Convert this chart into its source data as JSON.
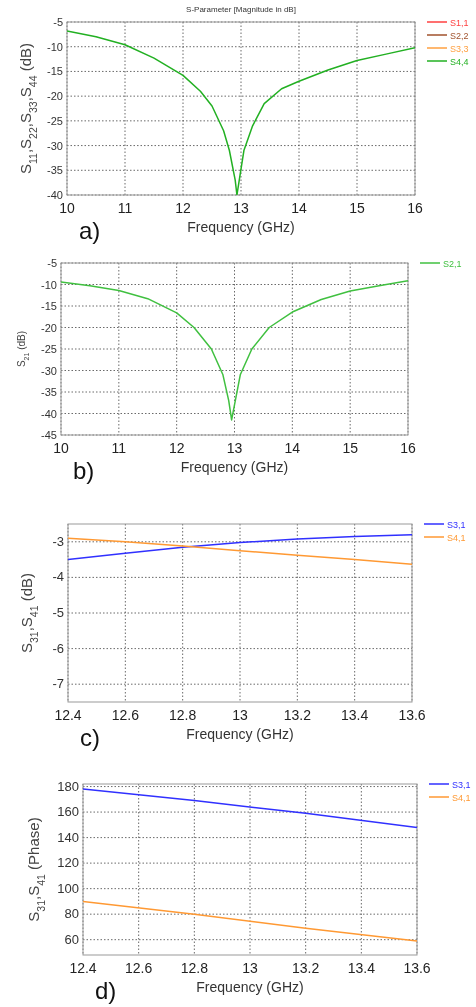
{
  "chart_data": [
    {
      "type": "line",
      "title": "S-Parameter [Magnitude in dB]",
      "xlabel": "Frequency (GHz)",
      "ylabel": "S$_{11}$,S$_{22}$,S$_{33}$,S$_{44}$ (dB)",
      "annotations": [
        "a)"
      ],
      "x": [
        10,
        10.5,
        11,
        11.5,
        12,
        12.3,
        12.5,
        12.7,
        12.8,
        12.9,
        12.93,
        12.97,
        13.05,
        13.2,
        13.4,
        13.7,
        14,
        14.5,
        15,
        15.5,
        16
      ],
      "series": [
        {
          "name": "S1,1",
          "color": "#ff4040",
          "values": [
            null,
            null,
            null,
            null,
            null,
            null,
            null,
            null,
            null,
            null,
            null,
            null,
            null,
            null,
            null,
            null,
            null,
            null,
            null,
            null,
            null
          ]
        },
        {
          "name": "S2,2",
          "color": "#a0522d",
          "values": [
            null,
            null,
            null,
            null,
            null,
            null,
            null,
            null,
            null,
            null,
            null,
            null,
            null,
            null,
            null,
            null,
            null,
            null,
            null,
            null,
            null
          ]
        },
        {
          "name": "S3,3",
          "color": "#ffa040",
          "values": [
            null,
            null,
            null,
            null,
            null,
            null,
            null,
            null,
            null,
            null,
            null,
            null,
            null,
            null,
            null,
            null,
            null,
            null,
            null,
            null,
            null
          ]
        },
        {
          "name": "S4,4",
          "color": "#22b022",
          "values": [
            -6.8,
            -8,
            -9.6,
            -12.3,
            -15.8,
            -19,
            -22,
            -27,
            -31,
            -37,
            -40,
            -37,
            -31,
            -26,
            -21.5,
            -18.5,
            -17,
            -14.7,
            -12.8,
            -11.5,
            -10.2
          ]
        }
      ],
      "xlim": [
        10,
        16
      ],
      "xticks": [
        10,
        11,
        12,
        13,
        14,
        15,
        16
      ],
      "ylim": [
        -40,
        -5
      ],
      "yticks": [
        -40,
        -35,
        -30,
        -25,
        -20,
        -15,
        -10,
        -5
      ],
      "grid": true,
      "legend": "top right",
      "line_style": "solid",
      "marker": "none"
    },
    {
      "type": "line",
      "xlabel": "Frequency (GHz)",
      "ylabel": "S$_{21}$ (dB)",
      "annotations": [
        "b)"
      ],
      "x": [
        10,
        10.5,
        11,
        11.5,
        12,
        12.3,
        12.6,
        12.8,
        12.9,
        12.95,
        13,
        13.1,
        13.3,
        13.6,
        14,
        14.5,
        15,
        15.5,
        16
      ],
      "series": [
        {
          "name": "S2,1",
          "color": "#40c040",
          "values": [
            -9.4,
            -10.3,
            -11.4,
            -13.3,
            -16.6,
            -20,
            -25,
            -31,
            -37,
            -41.5,
            -38,
            -31,
            -25,
            -20,
            -16.4,
            -13.5,
            -11.5,
            -10.3,
            -9.1
          ]
        }
      ],
      "xlim": [
        10,
        16
      ],
      "xticks": [
        10,
        11,
        12,
        13,
        14,
        15,
        16
      ],
      "ylim": [
        -45,
        -5
      ],
      "yticks": [
        -45,
        -40,
        -35,
        -30,
        -25,
        -20,
        -15,
        -10,
        -5
      ],
      "grid": true,
      "legend": "top right",
      "line_style": "solid",
      "marker": "none"
    },
    {
      "type": "line",
      "xlabel": "Frequency (GHz)",
      "ylabel": "S$_{31}$,S$_{41}$ (dB)",
      "annotations": [
        "c)"
      ],
      "x": [
        12.4,
        12.6,
        12.8,
        13,
        13.2,
        13.4,
        13.6
      ],
      "series": [
        {
          "name": "S3,1",
          "color": "#3030ff",
          "values": [
            -3.5,
            -3.32,
            -3.15,
            -3.02,
            -2.92,
            -2.85,
            -2.8
          ]
        },
        {
          "name": "S4,1",
          "color": "#ff9933",
          "values": [
            -2.9,
            -3.0,
            -3.12,
            -3.25,
            -3.38,
            -3.5,
            -3.63
          ]
        }
      ],
      "xlim": [
        12.4,
        13.6
      ],
      "xticks": [
        12.4,
        12.6,
        12.8,
        13,
        13.2,
        13.4,
        13.6
      ],
      "ylim": [
        -7.5,
        -2.5
      ],
      "yticks": [
        -7,
        -6,
        -5,
        -4,
        -3
      ],
      "grid": true,
      "legend": "top right",
      "line_style": "solid",
      "marker": "none"
    },
    {
      "type": "line",
      "xlabel": "Frequency (GHz)",
      "ylabel": "S$_{31}$,S$_{41}$ (Phase)",
      "annotations": [
        "d)"
      ],
      "x": [
        12.4,
        12.8,
        13.2,
        13.6
      ],
      "series": [
        {
          "name": "S3,1",
          "color": "#3030ff",
          "values": [
            178,
            169,
            159,
            148
          ]
        },
        {
          "name": "S4,1",
          "color": "#ff9933",
          "values": [
            90,
            80,
            69,
            59
          ]
        }
      ],
      "xlim": [
        12.4,
        13.6
      ],
      "xticks": [
        12.4,
        12.6,
        12.8,
        13,
        13.2,
        13.4,
        13.6
      ],
      "ylim": [
        48,
        182
      ],
      "yticks": [
        60,
        80,
        100,
        120,
        140,
        160,
        180
      ],
      "grid": true,
      "legend": "top right",
      "line_style": "solid",
      "marker": "none"
    }
  ]
}
